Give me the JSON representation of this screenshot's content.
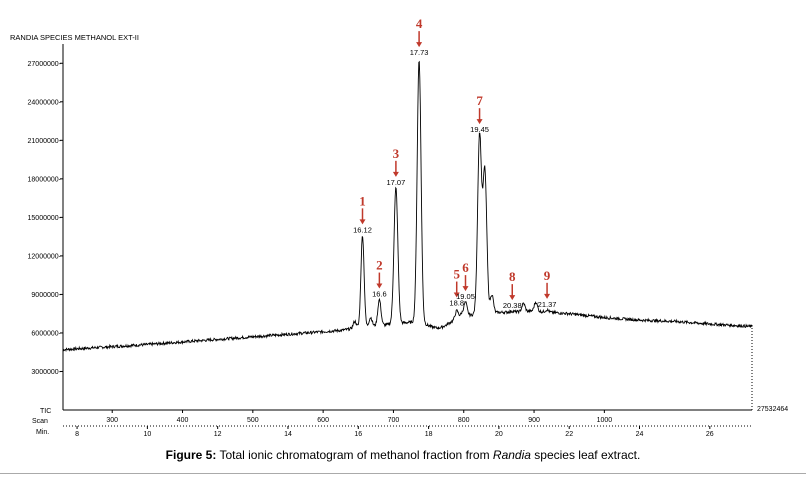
{
  "chart_data": {
    "type": "line",
    "title": "RANDIA SPECIES METHANOL EXT-II",
    "ylabel": "TIC",
    "row_label_scan": "Scan",
    "row_label_min": "Min.",
    "max_label": "27532464",
    "ylim": [
      0,
      28500000
    ],
    "y_ticks": [
      {
        "value": 3000000,
        "label": "3000000-"
      },
      {
        "value": 6000000,
        "label": "6000000-"
      },
      {
        "value": 9000000,
        "label": "9000000-"
      },
      {
        "value": 12000000,
        "label": "12000000-"
      },
      {
        "value": 15000000,
        "label": "15000000-"
      },
      {
        "value": 18000000,
        "label": "18000000-"
      },
      {
        "value": 21000000,
        "label": "21000000-"
      },
      {
        "value": 24000000,
        "label": "24000000-"
      },
      {
        "value": 27000000,
        "label": "27000000-"
      }
    ],
    "time_range": [
      7.6,
      27.2
    ],
    "scan_ticks": [
      {
        "time": 9.0,
        "label": "300"
      },
      {
        "time": 11.0,
        "label": "400"
      },
      {
        "time": 13.0,
        "label": "500"
      },
      {
        "time": 15.0,
        "label": "600"
      },
      {
        "time": 17.0,
        "label": "700"
      },
      {
        "time": 19.0,
        "label": "800"
      },
      {
        "time": 21.0,
        "label": "900"
      },
      {
        "time": 23.0,
        "label": "1000"
      }
    ],
    "min_ticks": [
      {
        "time": 8,
        "label": "8"
      },
      {
        "time": 10,
        "label": "10"
      },
      {
        "time": 12,
        "label": "12"
      },
      {
        "time": 14,
        "label": "14"
      },
      {
        "time": 16,
        "label": "16"
      },
      {
        "time": 18,
        "label": "18"
      },
      {
        "time": 20,
        "label": "20"
      },
      {
        "time": 22,
        "label": "22"
      },
      {
        "time": 24,
        "label": "24"
      },
      {
        "time": 26,
        "label": "26"
      }
    ],
    "baseline": [
      [
        7.6,
        4700000
      ],
      [
        10.0,
        5100000
      ],
      [
        12.0,
        5500000
      ],
      [
        14.0,
        5900000
      ],
      [
        15.5,
        6200000
      ],
      [
        16.0,
        6400000
      ],
      [
        17.0,
        6700000
      ],
      [
        18.0,
        7000000
      ],
      [
        19.0,
        7350000
      ],
      [
        20.0,
        7600000
      ],
      [
        21.0,
        7700000
      ],
      [
        22.0,
        7500000
      ],
      [
        23.0,
        7200000
      ],
      [
        24.0,
        7000000
      ],
      [
        25.0,
        6900000
      ],
      [
        26.0,
        6700000
      ],
      [
        27.2,
        6500000
      ]
    ],
    "peaks": [
      {
        "number": "1",
        "label": "16.12",
        "time": 16.12,
        "intensity": 13600000
      },
      {
        "number": "2",
        "label": "16.6",
        "time": 16.6,
        "intensity": 8600000
      },
      {
        "number": "3",
        "label": "17.07",
        "time": 17.07,
        "intensity": 17300000
      },
      {
        "number": "4",
        "label": "17.73",
        "time": 17.73,
        "intensity": 27400000
      },
      {
        "number": "5",
        "label": "18.8",
        "time": 18.8,
        "intensity": 7900000
      },
      {
        "number": "6",
        "label": "19.05",
        "time": 19.05,
        "intensity": 8400000
      },
      {
        "number": "7",
        "label": "19.45",
        "time": 19.45,
        "intensity": 21400000
      },
      {
        "number": "8",
        "label": "20.38",
        "time": 20.38,
        "intensity": 7700000
      },
      {
        "number": "9",
        "label": "21.37",
        "time": 21.37,
        "intensity": 7800000
      }
    ],
    "minor_peaks": [
      {
        "time": 15.9,
        "intensity": 6900000
      },
      {
        "time": 16.35,
        "intensity": 7200000
      },
      {
        "time": 18.95,
        "intensity": 7600000
      },
      {
        "time": 19.6,
        "intensity": 18600000
      },
      {
        "time": 19.8,
        "intensity": 9000000
      },
      {
        "time": 20.7,
        "intensity": 8300000
      },
      {
        "time": 21.05,
        "intensity": 8400000
      }
    ]
  },
  "caption": {
    "figure_label": "Figure 5:",
    "text_before": " Total ionic chromatogram of methanol fraction from ",
    "italic": "Randia",
    "text_after": " species leaf extract."
  },
  "colors": {
    "trace": "#000000",
    "annotation": "#c0392b"
  }
}
